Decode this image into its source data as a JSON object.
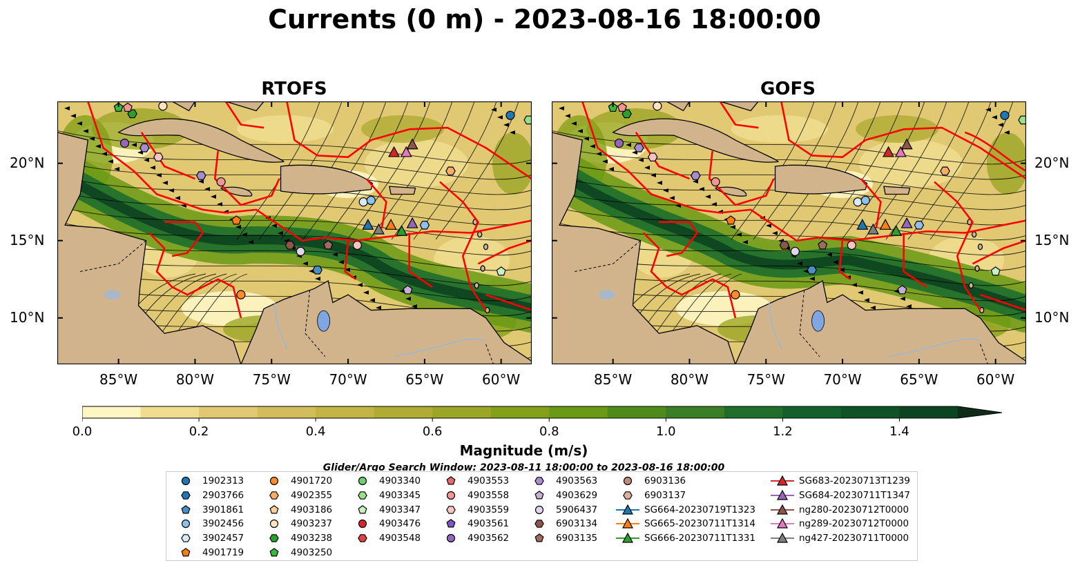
{
  "title": "Currents (0 m) - 2023-08-16 18:00:00",
  "panels": [
    {
      "title": "RTOFS"
    },
    {
      "title": "GOFS"
    }
  ],
  "map_extent": {
    "lon": [
      -89,
      -58
    ],
    "lat": [
      7,
      24
    ]
  },
  "lat_ticks": [
    {
      "value": 20,
      "label": "20°N"
    },
    {
      "value": 15,
      "label": "15°N"
    },
    {
      "value": 10,
      "label": "10°N"
    }
  ],
  "lon_ticks": [
    {
      "value": -85,
      "label": "85°W"
    },
    {
      "value": -80,
      "label": "80°W"
    },
    {
      "value": -75,
      "label": "75°W"
    },
    {
      "value": -70,
      "label": "70°W"
    },
    {
      "value": -65,
      "label": "65°W"
    },
    {
      "value": -60,
      "label": "60°W"
    }
  ],
  "colorbar": {
    "label": "Magnitude (m/s)",
    "range": [
      0.0,
      1.5
    ],
    "extend": "max",
    "ticks": [
      {
        "value": 0.0,
        "label": "0.0"
      },
      {
        "value": 0.2,
        "label": "0.2"
      },
      {
        "value": 0.4,
        "label": "0.4"
      },
      {
        "value": 0.6,
        "label": "0.6"
      },
      {
        "value": 0.8,
        "label": "0.8"
      },
      {
        "value": 1.0,
        "label": "1.0"
      },
      {
        "value": 1.2,
        "label": "1.2"
      },
      {
        "value": 1.4,
        "label": "1.4"
      }
    ],
    "colors": [
      "#fdf6c2",
      "#f0dc8e",
      "#e0c972",
      "#d2bd5a",
      "#c4b445",
      "#b0ac33",
      "#9ca626",
      "#84a019",
      "#6a9a14",
      "#4f8b1a",
      "#3a7f25",
      "#1f6e2c",
      "#13602c",
      "#0f5226",
      "#0c4320",
      "#102c18"
    ]
  },
  "colors": {
    "land": "#d2b48c",
    "eez_boundary": "#ff0000",
    "lake": "#7fa6e0",
    "river": "#9bb7d4"
  },
  "search_window": "Glider/Argo Search Window: 2023-08-11 18:00:00 to 2023-08-16 18:00:00",
  "legend": [
    [
      {
        "label": "1902313",
        "marker": "circle",
        "color": "#1f77b4"
      },
      {
        "label": "2903766",
        "marker": "hexagon",
        "color": "#1f77b4"
      },
      {
        "label": "3901861",
        "marker": "pentagon",
        "color": "#4a90c8"
      },
      {
        "label": "3902456",
        "marker": "circle",
        "color": "#8ec1ea"
      },
      {
        "label": "3902457",
        "marker": "hexagon",
        "color": "#d6ebf7"
      },
      {
        "label": "4901719",
        "marker": "pentagon",
        "color": "#ff7f0e"
      }
    ],
    [
      {
        "label": "4901720",
        "marker": "circle",
        "color": "#ff8c29"
      },
      {
        "label": "4902355",
        "marker": "hexagon",
        "color": "#ffad66"
      },
      {
        "label": "4903186",
        "marker": "pentagon",
        "color": "#ffcf99"
      },
      {
        "label": "4903237",
        "marker": "circle",
        "color": "#ffe4c2"
      },
      {
        "label": "4903238",
        "marker": "hexagon",
        "color": "#2ca02c"
      },
      {
        "label": "4903250",
        "marker": "pentagon",
        "color": "#3cb83c"
      }
    ],
    [
      {
        "label": "4903340",
        "marker": "circle",
        "color": "#6fcf6f"
      },
      {
        "label": "4903345",
        "marker": "hexagon",
        "color": "#98df8a"
      },
      {
        "label": "4903347",
        "marker": "pentagon",
        "color": "#c9efc0"
      },
      {
        "label": "4903476",
        "marker": "circle",
        "color": "#d62728"
      },
      {
        "label": "4903548",
        "marker": "hexagon",
        "color": "#e0433f"
      }
    ],
    [
      {
        "label": "4903553",
        "marker": "pentagon",
        "color": "#e86a68"
      },
      {
        "label": "4903558",
        "marker": "circle",
        "color": "#f29593"
      },
      {
        "label": "4903559",
        "marker": "hexagon",
        "color": "#f8c3c1"
      },
      {
        "label": "4903561",
        "marker": "pentagon",
        "color": "#7e57c2"
      },
      {
        "label": "4903562",
        "marker": "circle",
        "color": "#9467bd"
      }
    ],
    [
      {
        "label": "4903563",
        "marker": "hexagon",
        "color": "#a98bd0"
      },
      {
        "label": "4903629",
        "marker": "pentagon",
        "color": "#c5b0d5"
      },
      {
        "label": "5906437",
        "marker": "circle",
        "color": "#e3d6ee"
      },
      {
        "label": "6903134",
        "marker": "hexagon",
        "color": "#8c564b"
      },
      {
        "label": "6903135",
        "marker": "pentagon",
        "color": "#a06a5e"
      }
    ],
    [
      {
        "label": "6903136",
        "marker": "circle",
        "color": "#c08a7e"
      },
      {
        "label": "6903137",
        "marker": "hexagon",
        "color": "#e0ae9f"
      },
      {
        "label": "SG664-20230719T1323",
        "marker": "triangle-line",
        "color": "#1f77b4"
      },
      {
        "label": "SG665-20230711T1314",
        "marker": "triangle-line",
        "color": "#ff7f0e"
      },
      {
        "label": "SG666-20230711T1331",
        "marker": "triangle-line",
        "color": "#2ca02c"
      }
    ],
    [
      {
        "label": "SG683-20230713T1239",
        "marker": "triangle-line",
        "color": "#d62728"
      },
      {
        "label": "SG684-20230711T1347",
        "marker": "triangle-line",
        "color": "#9467bd"
      },
      {
        "label": "ng280-20230712T0000",
        "marker": "triangle-line",
        "color": "#8c564b"
      },
      {
        "label": "ng289-20230712T0000",
        "marker": "triangle-line",
        "color": "#e377c2"
      },
      {
        "label": "ng427-20230711T0000",
        "marker": "triangle-line",
        "color": "#7f7f7f"
      }
    ]
  ],
  "observations": [
    {
      "lon": -59.4,
      "lat": 23.1,
      "marker": "circle",
      "color": "#1f77b4"
    },
    {
      "lon": -58.2,
      "lat": 22.8,
      "marker": "hexagon",
      "color": "#98df8a"
    },
    {
      "lon": -82.1,
      "lat": 23.7,
      "marker": "circle",
      "color": "#ffe4c2"
    },
    {
      "lon": -84.1,
      "lat": 23.2,
      "marker": "hexagon",
      "color": "#2ca02c"
    },
    {
      "lon": -85.0,
      "lat": 23.6,
      "marker": "pentagon",
      "color": "#3cb83c"
    },
    {
      "lon": -84.4,
      "lat": 23.6,
      "marker": "pentagon",
      "color": "#f29593"
    },
    {
      "lon": -84.6,
      "lat": 21.3,
      "marker": "circle",
      "color": "#9467bd"
    },
    {
      "lon": -83.3,
      "lat": 21.0,
      "marker": "hexagon",
      "color": "#a98bd0"
    },
    {
      "lon": -82.4,
      "lat": 20.4,
      "marker": "hexagon",
      "color": "#f8c3c1"
    },
    {
      "lon": -79.6,
      "lat": 19.2,
      "marker": "hexagon",
      "color": "#a98bd0"
    },
    {
      "lon": -78.3,
      "lat": 18.8,
      "marker": "circle",
      "color": "#f29593"
    },
    {
      "lon": -77.3,
      "lat": 16.3,
      "marker": "pentagon",
      "color": "#ff7f0e"
    },
    {
      "lon": -77.0,
      "lat": 11.5,
      "marker": "circle",
      "color": "#ff8c29"
    },
    {
      "lon": -73.8,
      "lat": 14.7,
      "marker": "hexagon",
      "color": "#8c564b"
    },
    {
      "lon": -73.1,
      "lat": 14.3,
      "marker": "circle",
      "color": "#e3d6ee"
    },
    {
      "lon": -72.0,
      "lat": 13.1,
      "marker": "hexagon",
      "color": "#4a90c8"
    },
    {
      "lon": -71.3,
      "lat": 14.7,
      "marker": "pentagon",
      "color": "#a06a5e"
    },
    {
      "lon": -69.4,
      "lat": 14.7,
      "marker": "circle",
      "color": "#f8c3c1"
    },
    {
      "lon": -69.0,
      "lat": 17.5,
      "marker": "circle",
      "color": "#d6ebf7"
    },
    {
      "lon": -68.5,
      "lat": 17.6,
      "marker": "circle",
      "color": "#8ec1ea"
    },
    {
      "lon": -65.0,
      "lat": 16.0,
      "marker": "hexagon",
      "color": "#8ec1ea"
    },
    {
      "lon": -66.1,
      "lat": 11.8,
      "marker": "pentagon",
      "color": "#c5b0d5"
    },
    {
      "lon": -60.0,
      "lat": 13.0,
      "marker": "pentagon",
      "color": "#c9efc0"
    },
    {
      "lon": -63.3,
      "lat": 19.5,
      "marker": "hexagon",
      "color": "#ffad66"
    },
    {
      "lon": -68.7,
      "lat": 16.0,
      "marker": "triangle",
      "color": "#1f77b4"
    },
    {
      "lon": -68.0,
      "lat": 15.7,
      "marker": "triangle",
      "color": "#7f7f7f"
    },
    {
      "lon": -67.2,
      "lat": 16.0,
      "marker": "triangle",
      "color": "#ff7f0e"
    },
    {
      "lon": -66.5,
      "lat": 15.6,
      "marker": "triangle",
      "color": "#2ca02c"
    },
    {
      "lon": -65.8,
      "lat": 16.1,
      "marker": "triangle",
      "color": "#9467bd"
    },
    {
      "lon": -67.0,
      "lat": 20.7,
      "marker": "triangle",
      "color": "#d62728"
    },
    {
      "lon": -66.2,
      "lat": 20.7,
      "marker": "triangle",
      "color": "#e377c2"
    },
    {
      "lon": -65.8,
      "lat": 21.2,
      "marker": "triangle",
      "color": "#8c564b"
    }
  ]
}
